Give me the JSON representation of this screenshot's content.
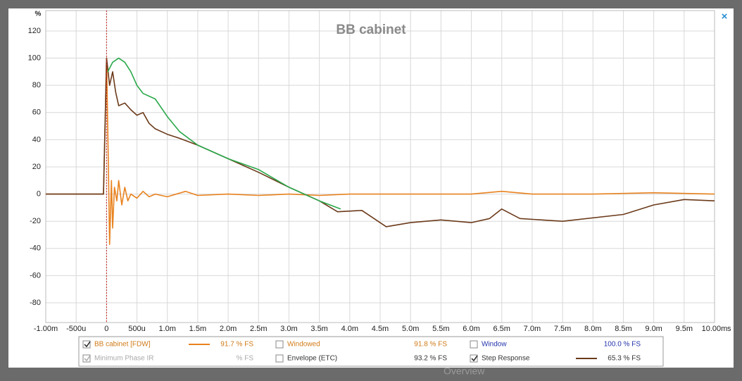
{
  "chart_data": {
    "type": "line",
    "title": "BB cabinet",
    "y_unit": "%",
    "x_unit": "s",
    "xlim": [
      -1,
      10
    ],
    "ylim": [
      -94.5,
      135
    ],
    "grid": true,
    "marker_x": 0,
    "xticks": [
      {
        "value": -1,
        "label": "-1.00m"
      },
      {
        "value": -0.5,
        "label": "-500u"
      },
      0,
      {
        "value": 0.5,
        "label": "500u"
      },
      {
        "value": 1,
        "label": "1.0m"
      },
      {
        "value": 1.5,
        "label": "1.5m"
      },
      {
        "value": 2,
        "label": "2.0m"
      },
      {
        "value": 2.5,
        "label": "2.5m"
      },
      {
        "value": 3,
        "label": "3.0m"
      },
      {
        "value": 3.5,
        "label": "3.5m"
      },
      {
        "value": 4,
        "label": "4.0m"
      },
      {
        "value": 4.5,
        "label": "4.5m"
      },
      {
        "value": 5,
        "label": "5.0m"
      },
      {
        "value": 5.5,
        "label": "5.5m"
      },
      {
        "value": 6,
        "label": "6.0m"
      },
      {
        "value": 6.5,
        "label": "6.5m"
      },
      {
        "value": 7,
        "label": "7.0m"
      },
      {
        "value": 7.5,
        "label": "7.5m"
      },
      {
        "value": 8,
        "label": "8.0m"
      },
      {
        "value": 8.5,
        "label": "8.5m"
      },
      {
        "value": 9,
        "label": "9.0m"
      },
      {
        "value": 9.5,
        "label": "9.5m"
      },
      {
        "value": 10,
        "label": "10.00m"
      }
    ],
    "yticks": [
      -80,
      -60,
      -40,
      -20,
      0,
      20,
      40,
      60,
      80,
      100,
      120
    ],
    "series": [
      {
        "color": "#e8821e",
        "x": [
          -1,
          -0.05,
          0,
          0.03,
          0.05,
          0.08,
          0.1,
          0.13,
          0.17,
          0.2,
          0.25,
          0.3,
          0.35,
          0.4,
          0.5,
          0.6,
          0.7,
          0.8,
          1.0,
          1.3,
          1.5,
          2,
          2.5,
          3,
          3.5,
          4,
          5,
          6,
          6.5,
          7,
          8,
          9,
          10
        ],
        "values": [
          0,
          0,
          100,
          20,
          -37,
          10,
          -25,
          5,
          -5,
          10,
          -8,
          5,
          -5,
          0,
          -3,
          2,
          -2,
          0,
          -2,
          2,
          -1,
          0,
          -1,
          0,
          -1,
          0,
          0,
          0,
          2,
          0,
          0,
          1,
          0
        ]
      },
      {
        "color": "#6b3a1a",
        "x": [
          -1,
          -0.05,
          0,
          0.05,
          0.1,
          0.15,
          0.2,
          0.3,
          0.4,
          0.5,
          0.6,
          0.7,
          0.8,
          1.0,
          1.2,
          1.5,
          2.0,
          2.5,
          3.0,
          3.5,
          3.8,
          4.2,
          4.6,
          5,
          5.5,
          6,
          6.3,
          6.5,
          6.8,
          7.5,
          8.5,
          9,
          9.5,
          10
        ],
        "values": [
          0,
          0,
          100,
          80,
          90,
          75,
          65,
          67,
          62,
          58,
          60,
          52,
          48,
          44,
          41,
          36,
          26,
          16,
          5,
          -5,
          -13,
          -12,
          -24,
          -21,
          -19,
          -21,
          -18,
          -11,
          -18,
          -20,
          -15,
          -8,
          -4,
          -5
        ]
      },
      {
        "color": "#2aa84a",
        "x": [
          0.02,
          0.1,
          0.2,
          0.3,
          0.4,
          0.5,
          0.6,
          0.8,
          1.0,
          1.2,
          1.5,
          2.0,
          2.5,
          3.0,
          3.5,
          3.85
        ],
        "values": [
          90,
          97,
          100,
          97,
          90,
          80,
          74,
          70,
          57,
          46,
          36,
          26,
          18,
          5,
          -5,
          -11
        ]
      }
    ]
  },
  "legend": [
    {
      "name": "BB cabinet [FDW]",
      "value": "91.7 % FS",
      "checked": true,
      "text_color": "#d07a18",
      "line_color": "#e8821e"
    },
    {
      "name": "Windowed",
      "value": "91.8 % FS",
      "checked": false,
      "text_color": "#d07a18"
    },
    {
      "name": "Window",
      "value": "100.0 % FS",
      "checked": false,
      "text_color": "#2233aa"
    },
    {
      "name": "Minimum Phase IR",
      "value": "% FS",
      "checked": true,
      "text_color": "#aaaaaa"
    },
    {
      "name": "Envelope (ETC)",
      "value": "93.2 % FS",
      "checked": false,
      "text_color": "#333333"
    },
    {
      "name": "Step Response",
      "value": "65.3 % FS",
      "checked": true,
      "text_color": "#333333",
      "line_color": "#6b3a1a"
    }
  ],
  "overview_label": "Overview",
  "close_label": "×"
}
